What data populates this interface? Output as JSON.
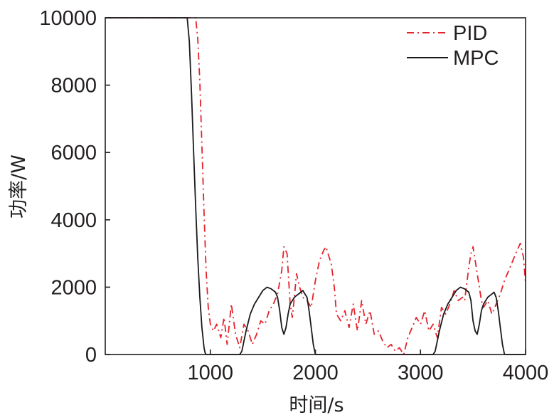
{
  "colors": {
    "pid": "#e3242b",
    "mpc": "#1a1a1a",
    "axis": "#231f20"
  },
  "chart_data": {
    "type": "line",
    "xlabel": "时间/s",
    "ylabel": "功率/W",
    "xlim": [
      0,
      4000
    ],
    "ylim": [
      0,
      10000
    ],
    "x_ticks": [
      1000,
      2000,
      3000,
      4000
    ],
    "y_ticks": [
      0,
      2000,
      4000,
      6000,
      8000,
      10000
    ],
    "grid": false,
    "legend_position": "top-right",
    "series": [
      {
        "name": "PID",
        "style": "dash-dot",
        "color": "#e3242b",
        "x": [
          0,
          860,
          880,
          900,
          920,
          940,
          960,
          980,
          1000,
          1030,
          1060,
          1100,
          1130,
          1160,
          1200,
          1240,
          1280,
          1320,
          1360,
          1400,
          1440,
          1480,
          1520,
          1560,
          1600,
          1640,
          1680,
          1700,
          1730,
          1760,
          1780,
          1800,
          1820,
          1850,
          1880,
          1920,
          1960,
          2000,
          2040,
          2080,
          2100,
          2120,
          2150,
          2180,
          2200,
          2240,
          2280,
          2320,
          2360,
          2400,
          2440,
          2480,
          2520,
          2560,
          2600,
          2640,
          2680,
          2720,
          2760,
          2800,
          2840,
          2880,
          2920,
          2960,
          3000,
          3040,
          3080,
          3120,
          3160,
          3200,
          3240,
          3280,
          3320,
          3360,
          3400,
          3420,
          3440,
          3460,
          3480,
          3500,
          3520,
          3550,
          3580,
          3600,
          3640,
          3680,
          3720,
          3760,
          3800,
          3840,
          3880,
          3920,
          3950,
          3980,
          4000
        ],
        "values": [
          10000,
          10000,
          9400,
          8100,
          6200,
          4200,
          2500,
          1400,
          900,
          700,
          900,
          500,
          1100,
          300,
          1500,
          600,
          200,
          900,
          700,
          300,
          600,
          1000,
          900,
          1300,
          1500,
          1800,
          2500,
          3200,
          3000,
          1500,
          1100,
          1700,
          2400,
          2000,
          1700,
          1600,
          1400,
          2200,
          2800,
          3100,
          3200,
          3000,
          2700,
          2000,
          1200,
          1000,
          1300,
          800,
          1500,
          700,
          1600,
          900,
          1300,
          600,
          700,
          400,
          200,
          300,
          100,
          200,
          0,
          500,
          800,
          1100,
          900,
          1300,
          700,
          900,
          500,
          1400,
          1200,
          1500,
          1900,
          1600,
          1700,
          1600,
          2100,
          2600,
          3000,
          3200,
          2800,
          2200,
          1600,
          1400,
          1600,
          1200,
          1500,
          1800,
          2200,
          2500,
          2800,
          3100,
          3300,
          2900,
          2100
        ]
      },
      {
        "name": "MPC",
        "style": "solid",
        "color": "#1a1a1a",
        "x": [
          0,
          780,
          800,
          820,
          840,
          860,
          880,
          900,
          920,
          940,
          950,
          960,
          1280,
          1300,
          1320,
          1340,
          1380,
          1420,
          1460,
          1500,
          1540,
          1580,
          1620,
          1640,
          1660,
          1680,
          1700,
          1720,
          1740,
          1760,
          1780,
          1800,
          1820,
          1840,
          1860,
          1880,
          1900,
          1920,
          1940,
          1960,
          1980,
          2000,
          3120,
          3140,
          3160,
          3180,
          3220,
          3260,
          3300,
          3340,
          3380,
          3420,
          3460,
          3480,
          3500,
          3520,
          3540,
          3560,
          3580,
          3600,
          3620,
          3640,
          3660,
          3680,
          3700,
          3720,
          3740,
          3760,
          3780,
          3800,
          4000
        ],
        "values": [
          10000,
          10000,
          9300,
          7800,
          6100,
          4400,
          2900,
          1700,
          800,
          200,
          50,
          0,
          0,
          100,
          400,
          700,
          1200,
          1500,
          1700,
          1900,
          2000,
          1950,
          1850,
          1700,
          1300,
          800,
          600,
          800,
          1200,
          1500,
          1600,
          1700,
          1750,
          1800,
          1850,
          1900,
          1800,
          1700,
          1300,
          800,
          300,
          0,
          0,
          100,
          400,
          700,
          1200,
          1500,
          1700,
          1900,
          2000,
          1950,
          1850,
          1600,
          1000,
          700,
          600,
          900,
          1300,
          1500,
          1600,
          1700,
          1750,
          1800,
          1850,
          1700,
          1300,
          800,
          300,
          0,
          0
        ]
      }
    ]
  }
}
